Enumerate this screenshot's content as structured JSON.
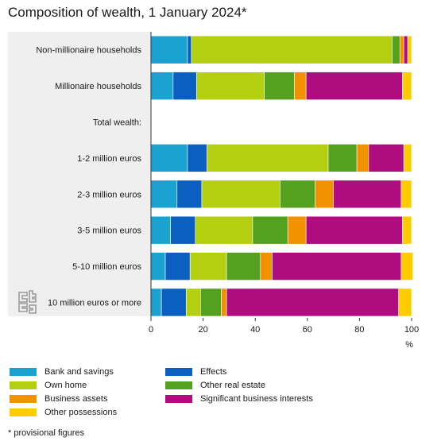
{
  "title": "Composition of wealth, 1 January 2024*",
  "footnote": "* provisional figures",
  "chart_data": {
    "type": "bar",
    "orientation": "horizontal",
    "stacked": true,
    "categories": [
      "Non-millionaire households",
      "Millionaire households",
      "Total wealth:",
      "1-2 million euros",
      "2-3 million euros",
      "3-5 million euros",
      "5-10 million euros",
      "10 million euros or more"
    ],
    "series": [
      {
        "name": "Bank and savings",
        "color": "#1aa3d1",
        "values": [
          14,
          8.5,
          null,
          14,
          10,
          7.5,
          5.5,
          4
        ]
      },
      {
        "name": "Effects",
        "color": "#0b5fc1",
        "values": [
          1.5,
          9,
          null,
          7.5,
          9.5,
          9.5,
          9.5,
          9.5
        ]
      },
      {
        "name": "Own home",
        "color": "#b4cf10",
        "values": [
          77,
          26,
          null,
          46.5,
          30,
          22,
          14,
          5.5
        ]
      },
      {
        "name": "Other real estate",
        "color": "#53a11f",
        "values": [
          3,
          11.5,
          null,
          11,
          13.5,
          13.5,
          13,
          8
        ]
      },
      {
        "name": "Business assets",
        "color": "#f39200",
        "values": [
          1.5,
          4.5,
          null,
          4.5,
          7,
          7,
          4.5,
          2
        ]
      },
      {
        "name": "Significant business interests",
        "color": "#af0d7f",
        "values": [
          1.5,
          37,
          null,
          13.5,
          26,
          37,
          49.5,
          66
        ]
      },
      {
        "name": "Other possessions",
        "color": "#ffcc00",
        "values": [
          1.5,
          3.5,
          null,
          3,
          4,
          3.5,
          4.5,
          5
        ]
      }
    ],
    "xlabel": "%",
    "xlim": [
      0,
      100
    ],
    "xticks": [
      "0",
      "20",
      "40",
      "60",
      "80",
      "100"
    ],
    "legend_position": "bottom",
    "grid": false
  },
  "legend": {
    "items": [
      {
        "label": "Bank and savings",
        "color": "#1aa3d1"
      },
      {
        "label": "Effects",
        "color": "#0b5fc1"
      },
      {
        "label": "Own home",
        "color": "#b4cf10"
      },
      {
        "label": "Other real estate",
        "color": "#53a11f"
      },
      {
        "label": "Business assets",
        "color": "#f39200"
      },
      {
        "label": "Significant business interests",
        "color": "#af0d7f"
      },
      {
        "label": "Other possessions",
        "color": "#ffcc00"
      }
    ]
  },
  "logo": {
    "name": "cbs-logo",
    "color": "#9a9a9a"
  }
}
